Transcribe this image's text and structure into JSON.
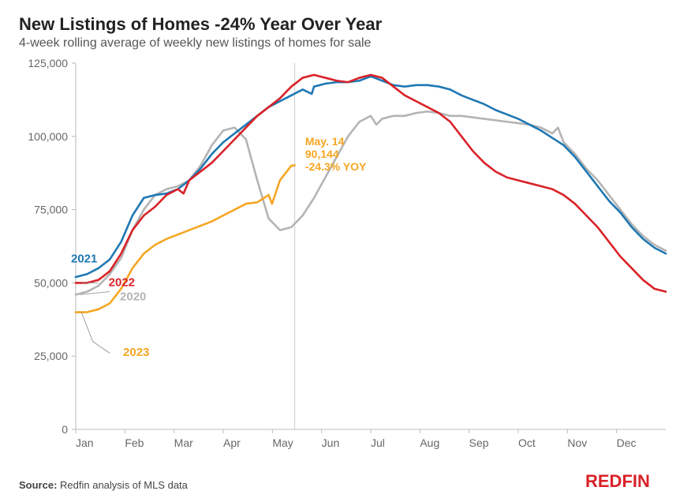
{
  "chart": {
    "type": "line",
    "title": "New Listings of Homes -24% Year Over Year",
    "subtitle": "4-week rolling average of weekly new listings of homes for sale",
    "background_color": "#ffffff",
    "title_color": "#222222",
    "subtitle_color": "#555555",
    "title_fontsize": 22,
    "subtitle_fontsize": 16,
    "axis_text_color": "#666666",
    "axis_line_color": "#bbbbbb",
    "x_months": [
      "Jan",
      "Feb",
      "Mar",
      "Apr",
      "May",
      "Jun",
      "Jul",
      "Aug",
      "Sep",
      "Oct",
      "Nov",
      "Dec"
    ],
    "y_ticks": [
      0,
      25000,
      50000,
      75000,
      100000,
      125000
    ],
    "y_tick_labels": [
      "0",
      "25,000",
      "50,000",
      "75,000",
      "100,000",
      "125,000"
    ],
    "ylim": [
      0,
      125000
    ],
    "xlim_weeks": [
      0,
      52
    ],
    "line_width": 2.6,
    "vertical_marker_week": 19.3,
    "vertical_marker_color": "#cccccc",
    "series": {
      "s2020": {
        "name": "2020",
        "color": "#b4b4b4",
        "label_x_week": 3.2,
        "label_y_val": 50000,
        "data": [
          [
            0,
            46000
          ],
          [
            1,
            47000
          ],
          [
            2,
            49000
          ],
          [
            3,
            53000
          ],
          [
            4,
            58500
          ],
          [
            5,
            68000
          ],
          [
            6,
            75000
          ],
          [
            7,
            80000
          ],
          [
            8,
            82000
          ],
          [
            9,
            83000
          ],
          [
            10,
            85000
          ],
          [
            11,
            90000
          ],
          [
            12,
            97000
          ],
          [
            13,
            102000
          ],
          [
            14,
            103000
          ],
          [
            15,
            99000
          ],
          [
            16,
            85000
          ],
          [
            17,
            72000
          ],
          [
            18,
            68000
          ],
          [
            19,
            69000
          ],
          [
            20,
            73000
          ],
          [
            21,
            79000
          ],
          [
            22,
            86000
          ],
          [
            23,
            93000
          ],
          [
            24,
            100000
          ],
          [
            25,
            105000
          ],
          [
            26,
            107000
          ],
          [
            26.5,
            104000
          ],
          [
            27,
            106000
          ],
          [
            28,
            107000
          ],
          [
            29,
            107000
          ],
          [
            30,
            108000
          ],
          [
            31,
            108500
          ],
          [
            32,
            108000
          ],
          [
            33,
            107000
          ],
          [
            34,
            107000
          ],
          [
            35,
            106500
          ],
          [
            36,
            106000
          ],
          [
            37,
            105500
          ],
          [
            38,
            105000
          ],
          [
            39,
            104500
          ],
          [
            40,
            104000
          ],
          [
            41,
            103000
          ],
          [
            42,
            101000
          ],
          [
            42.5,
            103000
          ],
          [
            43,
            98000
          ],
          [
            44,
            94000
          ],
          [
            45,
            89000
          ],
          [
            46,
            85000
          ],
          [
            47,
            80000
          ],
          [
            48,
            75000
          ],
          [
            49,
            70000
          ],
          [
            50,
            66000
          ],
          [
            51,
            63000
          ],
          [
            52,
            61000
          ]
        ]
      },
      "s2021": {
        "name": "2021",
        "color": "#1f78b4",
        "label_x_week": 0.0,
        "label_y_val": 57000,
        "data": [
          [
            0,
            52000
          ],
          [
            1,
            53000
          ],
          [
            2,
            55000
          ],
          [
            3,
            58000
          ],
          [
            4,
            64000
          ],
          [
            5,
            73000
          ],
          [
            6,
            79000
          ],
          [
            7,
            80000
          ],
          [
            8,
            80500
          ],
          [
            9,
            82000
          ],
          [
            10,
            85000
          ],
          [
            11,
            89000
          ],
          [
            12,
            94000
          ],
          [
            13,
            98000
          ],
          [
            14,
            101000
          ],
          [
            15,
            104000
          ],
          [
            16,
            107000
          ],
          [
            17,
            110000
          ],
          [
            18,
            112000
          ],
          [
            19,
            114000
          ],
          [
            20,
            116000
          ],
          [
            20.8,
            114500
          ],
          [
            21,
            117000
          ],
          [
            22,
            118000
          ],
          [
            23,
            118500
          ],
          [
            24,
            118500
          ],
          [
            25,
            119000
          ],
          [
            26,
            120500
          ],
          [
            27,
            119000
          ],
          [
            28,
            117500
          ],
          [
            29,
            117000
          ],
          [
            30,
            117500
          ],
          [
            31,
            117500
          ],
          [
            32,
            117000
          ],
          [
            33,
            116000
          ],
          [
            34,
            114000
          ],
          [
            35,
            112500
          ],
          [
            36,
            111000
          ],
          [
            37,
            109000
          ],
          [
            38,
            107500
          ],
          [
            39,
            106000
          ],
          [
            40,
            104000
          ],
          [
            41,
            102000
          ],
          [
            42,
            99500
          ],
          [
            43,
            97000
          ],
          [
            44,
            93000
          ],
          [
            45,
            88000
          ],
          [
            46,
            83000
          ],
          [
            47,
            78000
          ],
          [
            48,
            74000
          ],
          [
            49,
            69000
          ],
          [
            50,
            65000
          ],
          [
            51,
            62000
          ],
          [
            52,
            60000
          ]
        ]
      },
      "s2022": {
        "name": "2022",
        "color": "#d92228",
        "label_x_week": 2.2,
        "label_y_val": 50000,
        "data": [
          [
            0,
            50000
          ],
          [
            1,
            50000
          ],
          [
            2,
            51000
          ],
          [
            3,
            54000
          ],
          [
            4,
            60000
          ],
          [
            5,
            68000
          ],
          [
            6,
            73000
          ],
          [
            7,
            76000
          ],
          [
            8,
            80000
          ],
          [
            9,
            82000
          ],
          [
            9.5,
            80500
          ],
          [
            10,
            85000
          ],
          [
            11,
            88000
          ],
          [
            12,
            91000
          ],
          [
            13,
            95000
          ],
          [
            14,
            99000
          ],
          [
            15,
            103000
          ],
          [
            16,
            107000
          ],
          [
            17,
            110000
          ],
          [
            18,
            113000
          ],
          [
            19,
            117000
          ],
          [
            20,
            120000
          ],
          [
            21,
            121000
          ],
          [
            22,
            120000
          ],
          [
            23,
            119000
          ],
          [
            24,
            118500
          ],
          [
            25,
            120000
          ],
          [
            26,
            121000
          ],
          [
            27,
            120000
          ],
          [
            28,
            117000
          ],
          [
            29,
            114000
          ],
          [
            30,
            112000
          ],
          [
            31,
            110000
          ],
          [
            32,
            108000
          ],
          [
            33,
            105000
          ],
          [
            34,
            100000
          ],
          [
            35,
            95000
          ],
          [
            36,
            91000
          ],
          [
            37,
            88000
          ],
          [
            38,
            86000
          ],
          [
            39,
            85000
          ],
          [
            40,
            84000
          ],
          [
            41,
            83000
          ],
          [
            42,
            82000
          ],
          [
            43,
            80000
          ],
          [
            44,
            77000
          ],
          [
            45,
            73000
          ],
          [
            46,
            69000
          ],
          [
            47,
            64000
          ],
          [
            48,
            59000
          ],
          [
            49,
            55000
          ],
          [
            50,
            51000
          ],
          [
            51,
            48000
          ],
          [
            52,
            47000
          ]
        ]
      },
      "s2023": {
        "name": "2023",
        "color": "#f5a623",
        "label_x_week": 3.2,
        "label_y_val": 25000,
        "data": [
          [
            0,
            40000
          ],
          [
            1,
            40000
          ],
          [
            2,
            41000
          ],
          [
            3,
            43000
          ],
          [
            4,
            48000
          ],
          [
            5,
            55000
          ],
          [
            6,
            60000
          ],
          [
            7,
            63000
          ],
          [
            8,
            65000
          ],
          [
            9,
            66500
          ],
          [
            10,
            68000
          ],
          [
            11,
            69500
          ],
          [
            12,
            71000
          ],
          [
            13,
            73000
          ],
          [
            14,
            75000
          ],
          [
            15,
            77000
          ],
          [
            16,
            77500
          ],
          [
            17,
            80000
          ],
          [
            17.3,
            77000
          ],
          [
            18,
            85000
          ],
          [
            19,
            90000
          ],
          [
            19.3,
            90144
          ]
        ]
      }
    },
    "annotation": {
      "color": "#f5a623",
      "lines": [
        "May. 14",
        "90,144",
        "-24.3% YOY"
      ],
      "x_week": 19.8,
      "y_val": 97000
    },
    "label_leader_color": "#888888"
  },
  "footer": {
    "label": "Source:",
    "text": "Redfin analysis of MLS data"
  },
  "brand": {
    "name": "REDFIN",
    "color": "#d92228"
  }
}
